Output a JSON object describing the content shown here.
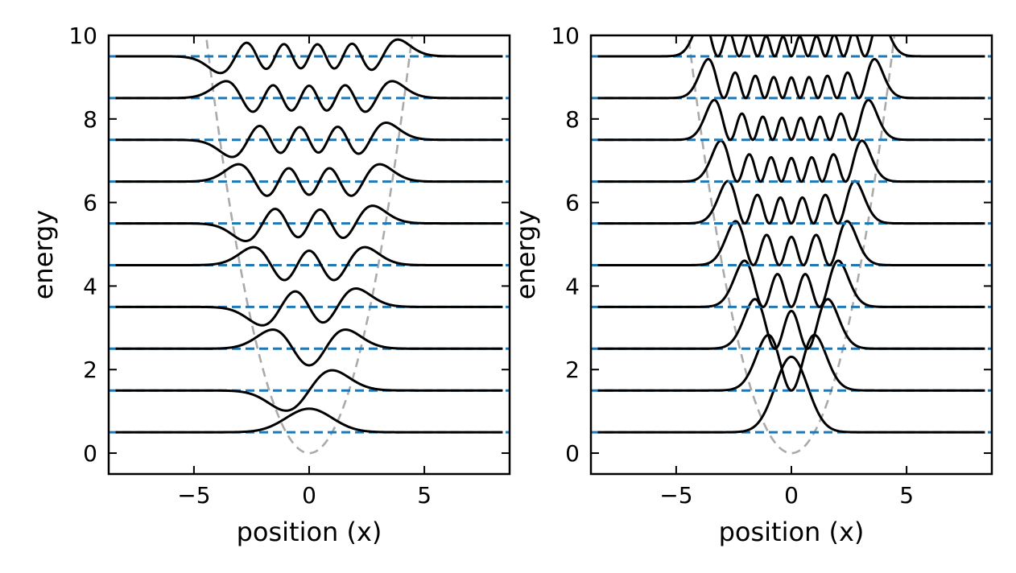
{
  "chart_data": [
    {
      "type": "line",
      "title": "",
      "xlabel": "position (x)",
      "ylabel": "energy",
      "xlim": [
        -8.7,
        8.7
      ],
      "ylim": [
        -0.5,
        10
      ],
      "xticks": [
        -5,
        0,
        5
      ],
      "xtick_labels": [
        "−5",
        "0",
        "5"
      ],
      "yticks": [
        0,
        2,
        4,
        6,
        8,
        10
      ],
      "ytick_labels": [
        "0",
        "2",
        "4",
        "6",
        "8",
        "10"
      ],
      "potential": "0.5*x^2",
      "energy_levels": [
        0.5,
        1.5,
        2.5,
        3.5,
        4.5,
        5.5,
        6.5,
        7.5,
        8.5,
        9.5
      ],
      "wavefunction_quantity": "psi_n(x), offset by E_n",
      "amplitude": 0.75,
      "x_range": [
        -8.4,
        8.4
      ],
      "grid": false,
      "legend": "none"
    },
    {
      "type": "line",
      "title": "",
      "xlabel": "position (x)",
      "ylabel": "energy",
      "xlim": [
        -8.7,
        8.7
      ],
      "ylim": [
        -0.5,
        10
      ],
      "xticks": [
        -5,
        0,
        5
      ],
      "xtick_labels": [
        "−5",
        "0",
        "5"
      ],
      "yticks": [
        0,
        2,
        4,
        6,
        8,
        10
      ],
      "ytick_labels": [
        "0",
        "2",
        "4",
        "6",
        "8",
        "10"
      ],
      "potential": "0.5*x^2",
      "energy_levels": [
        0.5,
        1.5,
        2.5,
        3.5,
        4.5,
        5.5,
        6.5,
        7.5,
        8.5,
        9.5
      ],
      "wavefunction_quantity": "|psi_n(x)|^2, offset by E_n",
      "amplitude": 1.0,
      "x_range": [
        -8.4,
        8.4
      ],
      "grid": false,
      "legend": "none"
    }
  ]
}
